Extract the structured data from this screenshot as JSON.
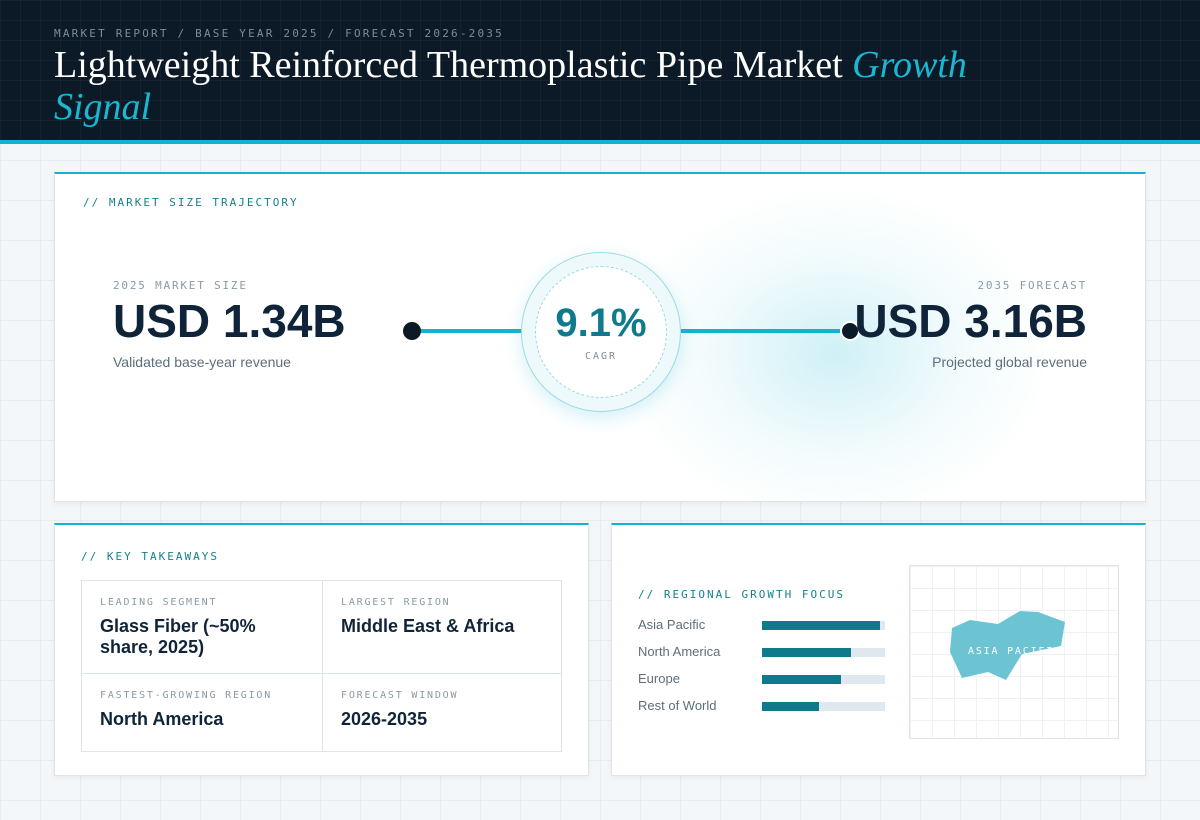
{
  "header": {
    "eyebrow": "MARKET REPORT / BASE YEAR 2025 / FORECAST 2026-2035",
    "title_main": "Lightweight Reinforced Thermoplastic Pipe Market ",
    "title_accent": "Growth Signal"
  },
  "trajectory": {
    "label": "// MARKET SIZE TRAJECTORY",
    "start": {
      "eyebrow": "2025 MARKET SIZE",
      "value": "USD 1.34B",
      "caption": "Validated base-year revenue"
    },
    "end": {
      "eyebrow": "2035 FORECAST",
      "value": "USD 3.16B",
      "caption": "Projected global revenue"
    },
    "cagr": {
      "value": "9.1%",
      "label": "CAGR"
    }
  },
  "takeaways": {
    "label": "// KEY TAKEAWAYS",
    "items": [
      {
        "label": "LEADING SEGMENT",
        "value": "Glass Fiber (~50% share, 2025)"
      },
      {
        "label": "LARGEST REGION",
        "value": "Middle East & Africa"
      },
      {
        "label": "FASTEST-GROWING REGION",
        "value": "North America"
      },
      {
        "label": "FORECAST WINDOW",
        "value": "2026-2035"
      }
    ]
  },
  "regional": {
    "label": "// REGIONAL GROWTH FOCUS",
    "bars": [
      {
        "name": "Asia Pacific",
        "level": 0.96
      },
      {
        "name": "North America",
        "level": 0.72
      },
      {
        "name": "Europe",
        "level": 0.64
      },
      {
        "name": "Rest of World",
        "level": 0.46
      }
    ],
    "map_label": "ASIA PACIFIC"
  },
  "colors": {
    "accent": "#12b3cf",
    "header_bg": "#0b1a26",
    "bar_fill": "#0f7a8c",
    "map_region": "#6cc4d3"
  }
}
